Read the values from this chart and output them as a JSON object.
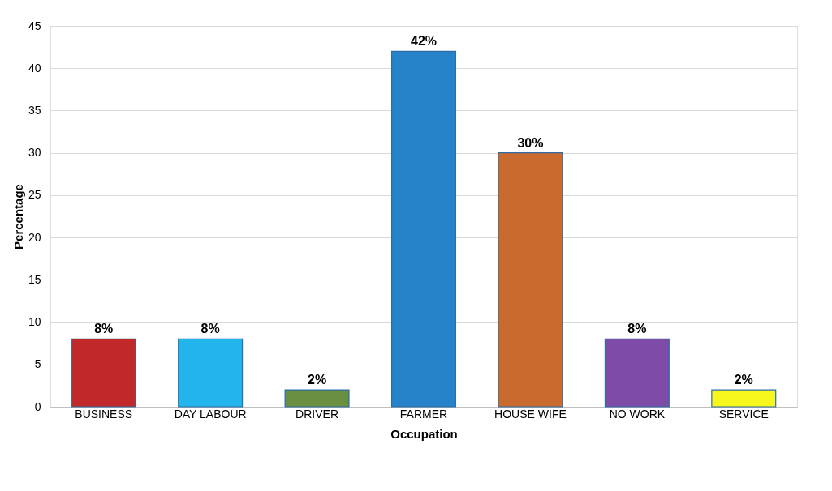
{
  "chart_data": {
    "type": "bar",
    "categories": [
      "BUSINESS",
      "DAY LABOUR",
      "DRIVER",
      "FARMER",
      "HOUSE WIFE",
      "NO WORK",
      "SERVICE"
    ],
    "values": [
      8,
      8,
      2,
      42,
      30,
      8,
      2
    ],
    "colors": [
      "#c0282a",
      "#21b5ec",
      "#6a8f40",
      "#2783c9",
      "#c96a2e",
      "#7e4ba6",
      "#f7f71e"
    ],
    "value_labels": [
      "8%",
      "8%",
      "2%",
      "42%",
      "30%",
      "8%",
      "2%"
    ],
    "xlabel": "Occupation",
    "ylabel": "Percentage",
    "ylim": [
      0,
      45
    ],
    "yticks": [
      0,
      5,
      10,
      15,
      20,
      25,
      30,
      35,
      40,
      45
    ],
    "grid": "y"
  }
}
